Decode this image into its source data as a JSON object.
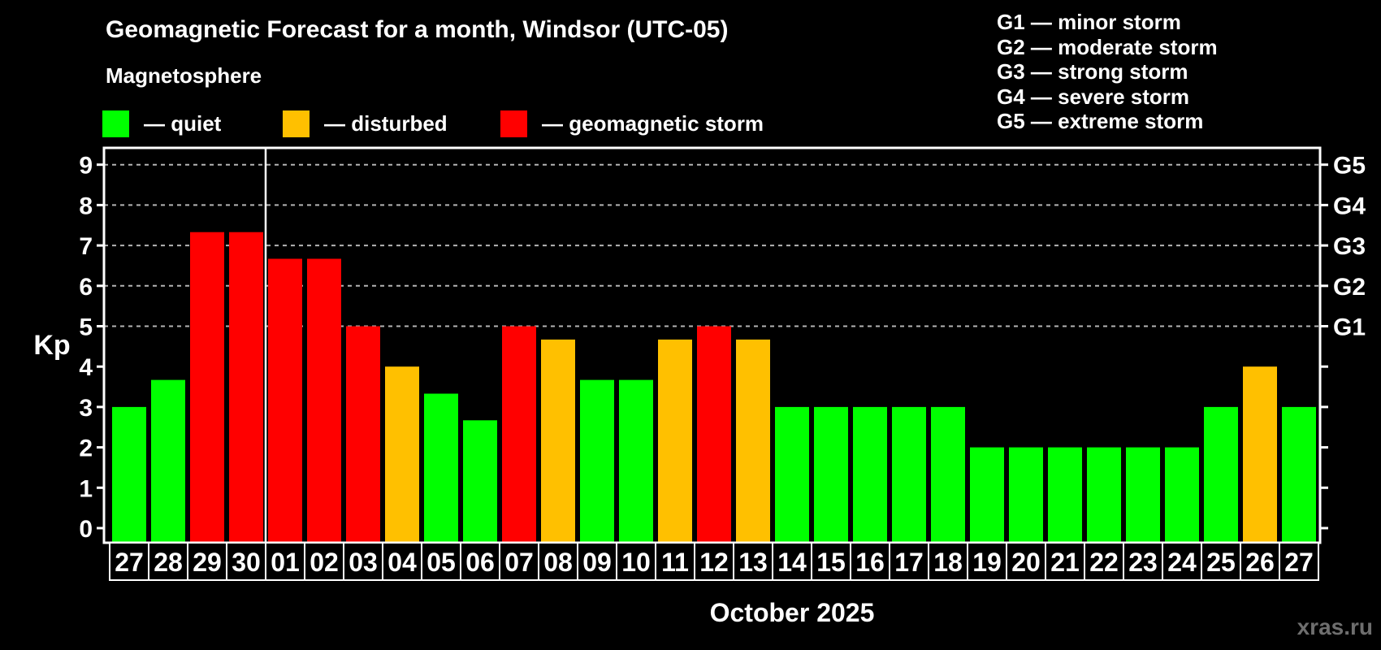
{
  "header": {
    "title": "Geomagnetic Forecast for a month, Windsor (UTC-05)",
    "subtitle": "Magnetosphere"
  },
  "legend": [
    {
      "key": "quiet",
      "label": "— quiet",
      "color": "#00ff00"
    },
    {
      "key": "disturbed",
      "label": "— disturbed",
      "color": "#ffc000"
    },
    {
      "key": "storm",
      "label": "— geomagnetic storm",
      "color": "#ff0000"
    }
  ],
  "g_legend": [
    "G1 — minor storm",
    "G2 — moderate storm",
    "G3 — strong storm",
    "G4 — severe storm",
    "G5 — extreme storm"
  ],
  "watermark": "xras.ru",
  "chart_data": {
    "type": "bar",
    "title": "Geomagnetic Forecast for a month, Windsor (UTC-05)",
    "xlabel": "October 2025",
    "ylabel": "Kp",
    "ylim": [
      0,
      9.5
    ],
    "yticks": [
      0,
      1,
      2,
      3,
      4,
      5,
      6,
      7,
      8,
      9
    ],
    "gridlines_at_kp": [
      5,
      6,
      7,
      8,
      9
    ],
    "grid": "dashed",
    "right_axis": [
      {
        "label": "G1",
        "kp": 5
      },
      {
        "label": "G2",
        "kp": 6
      },
      {
        "label": "G3",
        "kp": 7
      },
      {
        "label": "G4",
        "kp": 8
      },
      {
        "label": "G5",
        "kp": 9
      }
    ],
    "month_separator_index": 4,
    "categories": [
      "27",
      "28",
      "29",
      "30",
      "01",
      "02",
      "03",
      "04",
      "05",
      "06",
      "07",
      "08",
      "09",
      "10",
      "11",
      "12",
      "13",
      "14",
      "15",
      "16",
      "17",
      "18",
      "19",
      "20",
      "21",
      "22",
      "23",
      "24",
      "25",
      "26",
      "27"
    ],
    "values": [
      3,
      3.67,
      7.33,
      7.33,
      6.67,
      6.67,
      5,
      4,
      3.33,
      2.67,
      5,
      4.67,
      3.67,
      3.67,
      4.67,
      5,
      4.67,
      3,
      3,
      3,
      3,
      3,
      2,
      2,
      2,
      2,
      2,
      2,
      3,
      4,
      3
    ],
    "statuses": [
      "quiet",
      "quiet",
      "storm",
      "storm",
      "storm",
      "storm",
      "storm",
      "disturbed",
      "quiet",
      "quiet",
      "storm",
      "disturbed",
      "quiet",
      "quiet",
      "disturbed",
      "storm",
      "disturbed",
      "quiet",
      "quiet",
      "quiet",
      "quiet",
      "quiet",
      "quiet",
      "quiet",
      "quiet",
      "quiet",
      "quiet",
      "quiet",
      "quiet",
      "disturbed",
      "quiet"
    ],
    "status_colors": {
      "quiet": "#00ff00",
      "disturbed": "#ffc000",
      "storm": "#ff0000"
    },
    "legend_position": "top-left"
  }
}
